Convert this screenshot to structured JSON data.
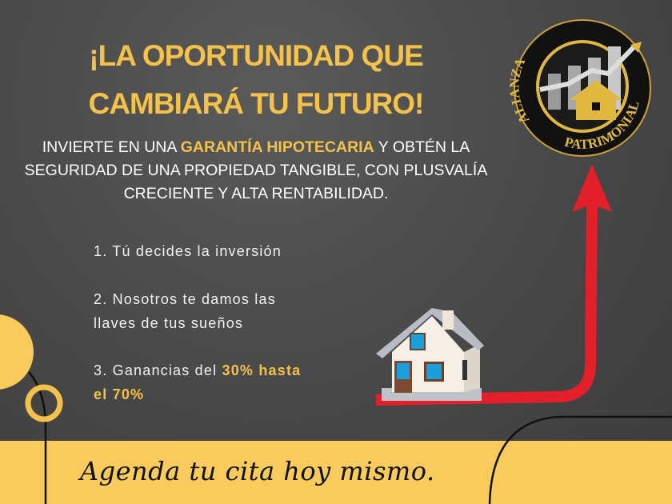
{
  "headline": {
    "line1": "¡LA OPORTUNIDAD QUE",
    "line2": "CAMBIARÁ TU FUTURO!"
  },
  "subtitle": {
    "before": "INVIERTE EN UNA ",
    "highlight": "GARANTÍA HIPOTECARIA",
    "after": " Y OBTÉN LA",
    "line2": "SEGURIDAD DE UNA PROPIEDAD TANGIBLE, CON PLUSVALÍA",
    "line3": "CRECIENTE Y ALTA RENTABILIDAD."
  },
  "steps": [
    {
      "text": "1. Tú decides la inversión"
    },
    {
      "line1": "2. Nosotros te damos las",
      "line2": "llaves de tus sueños"
    },
    {
      "before": "3. Ganancias del ",
      "highlight1": "30% hasta",
      "highlight2": "el 70%"
    }
  ],
  "logo": {
    "top_text": "ALIANZA",
    "bottom_text": "PATRIMONIAL"
  },
  "cta": "Agenda tu cita hoy mismo.",
  "colors": {
    "accent": "#f4c14a",
    "band": "#f9ca5c",
    "arrow": "#e3202a",
    "background": "#474747"
  }
}
